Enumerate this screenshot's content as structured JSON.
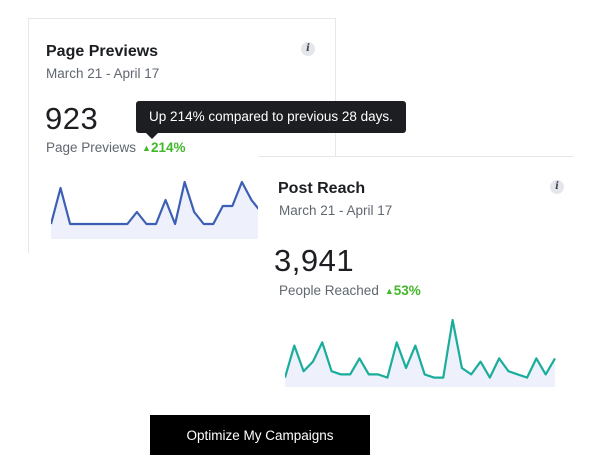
{
  "card_previews": {
    "title": "Page Previews",
    "date_range": "March 21 - April 17",
    "info_glyph": "i",
    "value": "923",
    "metric_label": "Page Previews",
    "change_arrow": "▲",
    "change": "214%",
    "line_color": "#3c5fb5",
    "fill_color": "#eef1fb",
    "series": [
      2,
      8,
      2,
      2,
      2,
      2,
      2,
      2,
      2,
      4,
      2,
      2,
      6,
      2,
      9,
      4,
      2,
      2,
      5,
      5,
      9,
      6,
      4
    ]
  },
  "tooltip": {
    "text": "Up 214% compared to previous 28 days."
  },
  "card_reach": {
    "title": "Post Reach",
    "date_range": "March 21 - April 17",
    "info_glyph": "i",
    "value": "3,941",
    "metric_label": "People Reached",
    "change_arrow": "▲",
    "change": "53%",
    "line_color": "#1aad9b",
    "fill_color": "#eef1fb",
    "series": [
      2,
      12,
      4,
      7,
      13,
      4,
      3,
      3,
      8,
      3,
      3,
      2,
      13,
      5,
      12,
      3,
      2,
      2,
      20,
      5,
      3,
      7,
      2,
      8,
      4,
      3,
      2,
      8,
      3,
      8
    ]
  },
  "cta": {
    "label": "Optimize My Campaigns"
  }
}
